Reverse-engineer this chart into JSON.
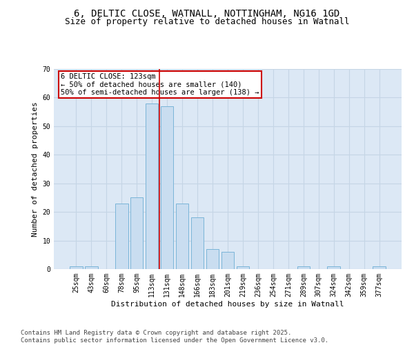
{
  "title_line1": "6, DELTIC CLOSE, WATNALL, NOTTINGHAM, NG16 1GD",
  "title_line2": "Size of property relative to detached houses in Watnall",
  "xlabel": "Distribution of detached houses by size in Watnall",
  "ylabel": "Number of detached properties",
  "categories": [
    "25sqm",
    "43sqm",
    "60sqm",
    "78sqm",
    "95sqm",
    "113sqm",
    "131sqm",
    "148sqm",
    "166sqm",
    "183sqm",
    "201sqm",
    "219sqm",
    "236sqm",
    "254sqm",
    "271sqm",
    "289sqm",
    "307sqm",
    "324sqm",
    "342sqm",
    "359sqm",
    "377sqm"
  ],
  "values": [
    1,
    1,
    0,
    23,
    25,
    58,
    57,
    23,
    18,
    7,
    6,
    1,
    0,
    0,
    0,
    1,
    0,
    1,
    0,
    0,
    1
  ],
  "bar_color": "#c9ddf0",
  "bar_edge_color": "#7ab4d8",
  "vline_x_index": 5.5,
  "vline_color": "#cc0000",
  "annotation_box_text": "6 DELTIC CLOSE: 123sqm\n← 50% of detached houses are smaller (140)\n50% of semi-detached houses are larger (138) →",
  "box_edge_color": "#cc0000",
  "ylim": [
    0,
    70
  ],
  "yticks": [
    0,
    10,
    20,
    30,
    40,
    50,
    60,
    70
  ],
  "grid_color": "#c5d5e5",
  "background_color": "#dce8f5",
  "footer_text": "Contains HM Land Registry data © Crown copyright and database right 2025.\nContains public sector information licensed under the Open Government Licence v3.0.",
  "title_fontsize": 10,
  "subtitle_fontsize": 9,
  "axis_label_fontsize": 8,
  "tick_fontsize": 7,
  "annotation_fontsize": 7.5,
  "footer_fontsize": 6.5
}
